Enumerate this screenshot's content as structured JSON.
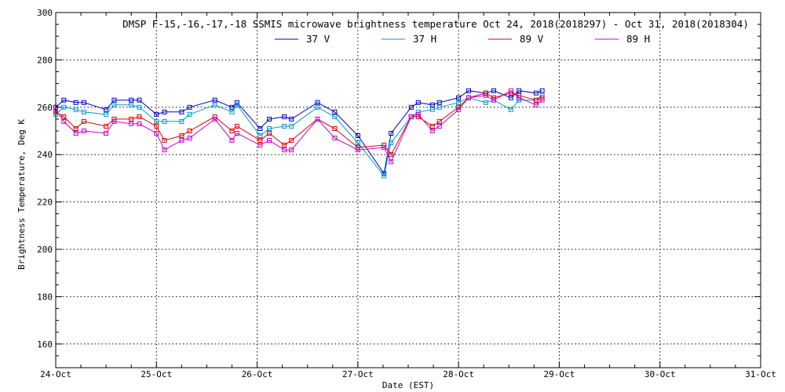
{
  "chart_data": {
    "type": "line",
    "title": "DMSP F-15,-16,-17,-18 SSMIS microwave brightness temperature Oct 24, 2018(2018297) - Oct 31, 2018(2018304)",
    "xlabel": "Date (EST)",
    "ylabel": "Brightness Temperature, Deg K",
    "x_unit": "day of October 2018 (EST)",
    "xlim": [
      24,
      31
    ],
    "ylim": [
      150,
      300
    ],
    "xticks": [
      24,
      25,
      26,
      27,
      28,
      29,
      30,
      31
    ],
    "xtick_labels": [
      "24-Oct",
      "25-Oct",
      "26-Oct",
      "27-Oct",
      "28-Oct",
      "29-Oct",
      "30-Oct",
      "31-Oct"
    ],
    "yticks": [
      160,
      180,
      200,
      220,
      240,
      260,
      280,
      300
    ],
    "ytick_labels": [
      "160",
      "180",
      "200",
      "220",
      "240",
      "260",
      "280",
      "300"
    ],
    "grid": true,
    "legend_position": "top-center",
    "marker": "open-square",
    "series": [
      {
        "name": "37 V",
        "color": "#0000cc",
        "x": [
          24.0,
          24.08,
          24.2,
          24.28,
          24.5,
          24.58,
          24.75,
          24.83,
          25.0,
          25.08,
          25.25,
          25.33,
          25.58,
          25.75,
          25.8,
          26.03,
          26.12,
          26.27,
          26.34,
          26.6,
          26.77,
          27.0,
          27.26,
          27.33,
          27.53,
          27.6,
          27.74,
          27.81,
          28.0,
          28.1,
          28.27,
          28.35,
          28.52,
          28.6,
          28.77,
          28.83
        ],
        "y": [
          260,
          263,
          262,
          262,
          259,
          263,
          263,
          263,
          257,
          258,
          258,
          260,
          263,
          260,
          262,
          251,
          255,
          256,
          255,
          262,
          258,
          248,
          232,
          249,
          260,
          262,
          261,
          262,
          264,
          267,
          266,
          267,
          264,
          267,
          266,
          267
        ]
      },
      {
        "name": "37 H",
        "color": "#0099cc",
        "x": [
          24.0,
          24.08,
          24.2,
          24.28,
          24.5,
          24.58,
          24.75,
          24.83,
          25.0,
          25.08,
          25.25,
          25.33,
          25.58,
          25.75,
          25.8,
          26.03,
          26.12,
          26.27,
          26.34,
          26.6,
          26.77,
          27.0,
          27.26,
          27.33,
          27.53,
          27.6,
          27.74,
          27.81,
          28.0,
          28.1,
          28.27,
          28.35,
          28.52,
          28.6,
          28.77,
          28.83
        ],
        "y": [
          257,
          260,
          259,
          258,
          257,
          261,
          261,
          260,
          254,
          254,
          254,
          257,
          261,
          258,
          261,
          248,
          251,
          252,
          252,
          260,
          256,
          245,
          231,
          245,
          256,
          258,
          259,
          260,
          262,
          264,
          262,
          263,
          259,
          263,
          263,
          265
        ]
      },
      {
        "name": "89 V",
        "color": "#dd0000",
        "x": [
          24.0,
          24.08,
          24.2,
          24.28,
          24.5,
          24.58,
          24.75,
          24.83,
          25.0,
          25.08,
          25.25,
          25.33,
          25.58,
          25.75,
          25.8,
          26.03,
          26.12,
          26.27,
          26.34,
          26.6,
          26.77,
          27.0,
          27.26,
          27.33,
          27.53,
          27.6,
          27.74,
          27.81,
          28.0,
          28.1,
          28.27,
          28.35,
          28.52,
          28.6,
          28.77,
          28.83
        ],
        "y": [
          258,
          256,
          251,
          254,
          252,
          255,
          255,
          256,
          252,
          246,
          248,
          250,
          256,
          250,
          252,
          246,
          249,
          244,
          246,
          255,
          251,
          243,
          244,
          240,
          256,
          256,
          252,
          254,
          260,
          264,
          266,
          264,
          266,
          265,
          263,
          264
        ]
      },
      {
        "name": "89 H",
        "color": "#cc00cc",
        "x": [
          24.0,
          24.08,
          24.2,
          24.28,
          24.5,
          24.58,
          24.75,
          24.83,
          25.0,
          25.08,
          25.25,
          25.33,
          25.58,
          25.75,
          25.8,
          26.03,
          26.12,
          26.27,
          26.34,
          26.6,
          26.77,
          27.0,
          27.26,
          27.33,
          27.53,
          27.6,
          27.74,
          27.81,
          28.0,
          28.1,
          28.27,
          28.35,
          28.52,
          28.6,
          28.77,
          28.83
        ],
        "y": [
          259,
          254,
          249,
          250,
          249,
          254,
          253,
          253,
          249,
          242,
          246,
          247,
          255,
          246,
          249,
          244,
          246,
          242,
          242,
          255,
          247,
          242,
          243,
          237,
          256,
          257,
          250,
          252,
          259,
          264,
          265,
          263,
          267,
          264,
          261,
          263
        ]
      }
    ]
  }
}
